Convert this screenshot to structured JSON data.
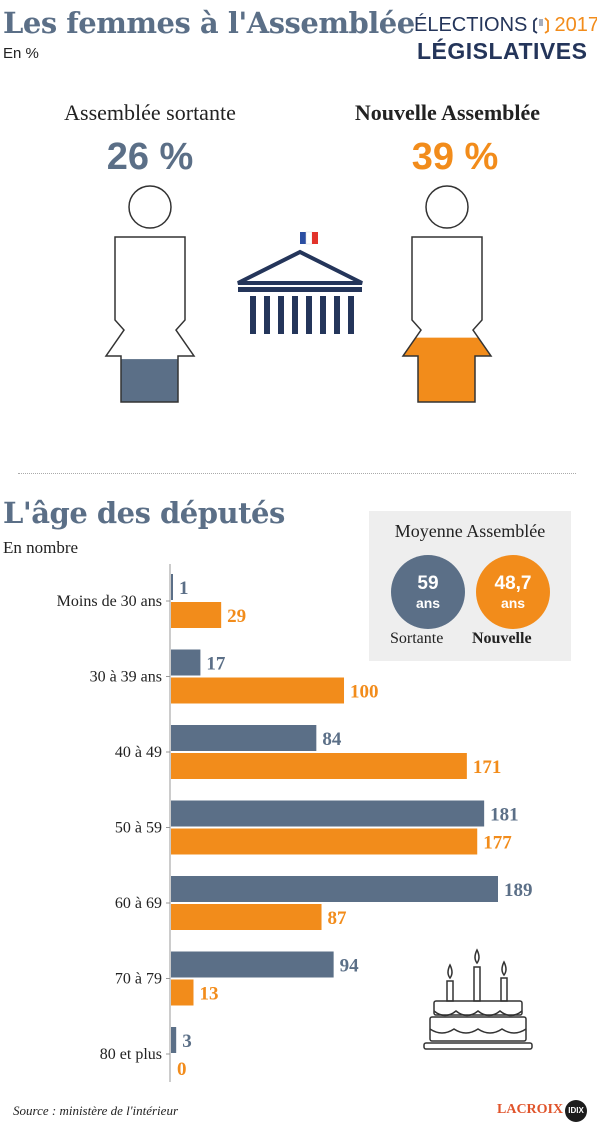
{
  "header": {
    "title": "Les femmes à l'Assemblée",
    "unit": "En %",
    "elections_label": "ÉLECTIONS",
    "elections_year": "2017",
    "elections_sub": "LÉGISLATIVES"
  },
  "women": {
    "outgoing_label": "Assemblée sortante",
    "outgoing_value": "26 %",
    "outgoing_fraction": 0.26,
    "new_label": "Nouvelle Assemblée",
    "new_value": "39 %",
    "new_fraction": 0.39
  },
  "age_section": {
    "title": "L'âge des députés",
    "unit": "En nombre"
  },
  "average": {
    "title": "Moyenne Assemblée",
    "outgoing_value": "59",
    "outgoing_unit": "ans",
    "new_value": "48,7",
    "new_unit": "ans",
    "outgoing_label": "Sortante",
    "new_label": "Nouvelle"
  },
  "colors": {
    "outgoing": "#5b6f87",
    "new": "#f28c1b",
    "navy": "#24355a"
  },
  "chart_data": {
    "type": "bar",
    "orientation": "horizontal",
    "categories": [
      "Moins de 30 ans",
      "30 à 39 ans",
      "40 à 49",
      "50 à 59",
      "60 à 69",
      "70 à 79",
      "80 et plus"
    ],
    "series": [
      {
        "values": [
          1,
          17,
          84,
          181,
          189,
          94,
          3
        ]
      },
      {
        "values": [
          29,
          100,
          171,
          177,
          87,
          13,
          0
        ]
      }
    ],
    "xlim": [
      0,
      189
    ]
  },
  "footer": {
    "source": "Source : ministère de l'intérieur",
    "logo": "LACROIX",
    "badge": "IDIX"
  }
}
